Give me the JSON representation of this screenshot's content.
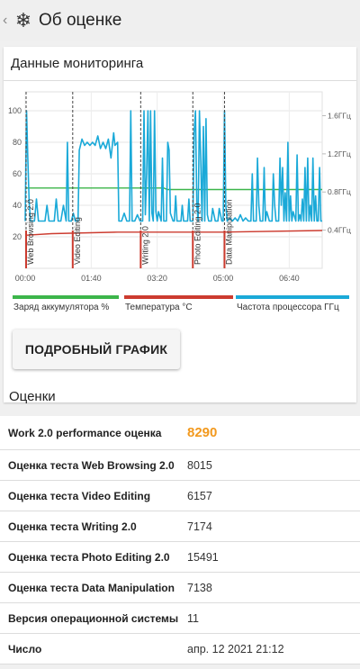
{
  "app_bar": {
    "back_glyph": "‹",
    "title": "Об оценке",
    "icon": "snowflake-icon"
  },
  "monitoring": {
    "title": "Данные мониторинга",
    "button_label": "ПОДРОБНЫЙ ГРАФИК"
  },
  "chart_data": {
    "type": "line",
    "x_ticks": [
      "00:00",
      "01:40",
      "03:20",
      "05:00",
      "06:40"
    ],
    "y_left_ticks": [
      "100",
      "80",
      "60",
      "40",
      "20"
    ],
    "y_left_range": [
      0,
      100
    ],
    "y_right_ticks": [
      "1.6ГГц",
      "1.2ГГц",
      "0.8ГГц",
      "0.4ГГц"
    ],
    "y_right_values_ghz": [
      1.6,
      1.2,
      0.8,
      0.4
    ],
    "grid": true,
    "legend_position": "bottom",
    "test_markers": [
      {
        "label": "Web Browsing 2.0",
        "time_min": 0
      },
      {
        "label": "Video Editing",
        "time_min": 72
      },
      {
        "label": "Writing 2.0",
        "time_min": 175
      },
      {
        "label": "Photo Editing 2.0",
        "time_min": 254
      },
      {
        "label": "Data Manipulation",
        "time_min": 302
      }
    ],
    "series": [
      {
        "name": "Заряд аккумулятора %",
        "color": "#3cb54a",
        "axis": "left",
        "points": [
          [
            0,
            51
          ],
          [
            210,
            51
          ],
          [
            215,
            50
          ],
          [
            450,
            50
          ]
        ]
      },
      {
        "name": "Температура °C",
        "color": "#cc3b2f",
        "axis": "left",
        "points": [
          [
            0,
            21
          ],
          [
            40,
            22
          ],
          [
            140,
            23
          ],
          [
            300,
            23
          ],
          [
            450,
            24
          ]
        ]
      },
      {
        "name": "Частота процессора ГГц",
        "color": "#1aa9d8",
        "axis": "left",
        "points": [
          [
            0,
            30
          ],
          [
            2,
            100
          ],
          [
            4,
            70
          ],
          [
            6,
            42
          ],
          [
            8,
            30
          ],
          [
            14,
            30
          ],
          [
            17,
            44
          ],
          [
            20,
            30
          ],
          [
            30,
            30
          ],
          [
            33,
            40
          ],
          [
            36,
            30
          ],
          [
            44,
            30
          ],
          [
            47,
            44
          ],
          [
            50,
            30
          ],
          [
            54,
            30
          ],
          [
            58,
            40
          ],
          [
            62,
            30
          ],
          [
            64,
            80
          ],
          [
            66,
            30
          ],
          [
            70,
            30
          ],
          [
            73,
            35
          ],
          [
            76,
            30
          ],
          [
            80,
            30
          ],
          [
            82,
            75
          ],
          [
            86,
            82
          ],
          [
            90,
            78
          ],
          [
            94,
            80
          ],
          [
            98,
            78
          ],
          [
            102,
            80
          ],
          [
            106,
            78
          ],
          [
            110,
            84
          ],
          [
            114,
            76
          ],
          [
            118,
            80
          ],
          [
            122,
            76
          ],
          [
            126,
            82
          ],
          [
            130,
            70
          ],
          [
            134,
            86
          ],
          [
            136,
            78
          ],
          [
            140,
            80
          ],
          [
            142,
            30
          ],
          [
            146,
            30
          ],
          [
            150,
            35
          ],
          [
            154,
            30
          ],
          [
            158,
            30
          ],
          [
            160,
            100
          ],
          [
            162,
            30
          ],
          [
            166,
            30
          ],
          [
            170,
            34
          ],
          [
            174,
            30
          ],
          [
            178,
            30
          ],
          [
            180,
            100
          ],
          [
            182,
            34
          ],
          [
            184,
            60
          ],
          [
            186,
            100
          ],
          [
            188,
            30
          ],
          [
            190,
            100
          ],
          [
            192,
            35
          ],
          [
            194,
            30
          ],
          [
            196,
            100
          ],
          [
            198,
            36
          ],
          [
            200,
            30
          ],
          [
            202,
            36
          ],
          [
            206,
            30
          ],
          [
            208,
            70
          ],
          [
            210,
            30
          ],
          [
            214,
            30
          ],
          [
            216,
            80
          ],
          [
            218,
            75
          ],
          [
            220,
            35
          ],
          [
            224,
            30
          ],
          [
            226,
            30
          ],
          [
            228,
            46
          ],
          [
            230,
            30
          ],
          [
            236,
            30
          ],
          [
            238,
            40
          ],
          [
            240,
            30
          ],
          [
            246,
            30
          ],
          [
            248,
            44
          ],
          [
            250,
            30
          ],
          [
            254,
            30
          ],
          [
            256,
            86
          ],
          [
            258,
            100
          ],
          [
            260,
            40
          ],
          [
            262,
            30
          ],
          [
            264,
            100
          ],
          [
            266,
            68
          ],
          [
            268,
            30
          ],
          [
            270,
            90
          ],
          [
            272,
            30
          ],
          [
            274,
            95
          ],
          [
            276,
            34
          ],
          [
            278,
            30
          ],
          [
            282,
            30
          ],
          [
            284,
            38
          ],
          [
            288,
            30
          ],
          [
            292,
            30
          ],
          [
            294,
            38
          ],
          [
            298,
            30
          ],
          [
            300,
            30
          ],
          [
            302,
            100
          ],
          [
            304,
            40
          ],
          [
            306,
            30
          ],
          [
            310,
            32
          ],
          [
            314,
            30
          ],
          [
            318,
            32
          ],
          [
            322,
            30
          ],
          [
            326,
            34
          ],
          [
            330,
            30
          ],
          [
            334,
            32
          ],
          [
            338,
            30
          ],
          [
            342,
            30
          ],
          [
            344,
            60
          ],
          [
            346,
            30
          ],
          [
            350,
            30
          ],
          [
            352,
            70
          ],
          [
            354,
            40
          ],
          [
            356,
            30
          ],
          [
            360,
            30
          ],
          [
            362,
            64
          ],
          [
            364,
            30
          ],
          [
            366,
            36
          ],
          [
            370,
            30
          ],
          [
            374,
            30
          ],
          [
            376,
            60
          ],
          [
            378,
            40
          ],
          [
            380,
            30
          ],
          [
            384,
            30
          ],
          [
            386,
            70
          ],
          [
            388,
            40
          ],
          [
            390,
            64
          ],
          [
            392,
            30
          ],
          [
            394,
            48
          ],
          [
            396,
            30
          ],
          [
            398,
            80
          ],
          [
            400,
            30
          ],
          [
            402,
            46
          ],
          [
            404,
            30
          ],
          [
            406,
            36
          ],
          [
            410,
            30
          ],
          [
            412,
            72
          ],
          [
            414,
            30
          ],
          [
            416,
            34
          ],
          [
            418,
            30
          ],
          [
            420,
            44
          ],
          [
            422,
            30
          ],
          [
            424,
            64
          ],
          [
            426,
            30
          ],
          [
            428,
            70
          ],
          [
            430,
            30
          ],
          [
            432,
            40
          ],
          [
            434,
            30
          ],
          [
            436,
            70
          ],
          [
            438,
            30
          ],
          [
            440,
            46
          ],
          [
            442,
            30
          ],
          [
            444,
            30
          ],
          [
            446,
            64
          ],
          [
            448,
            30
          ],
          [
            450,
            30
          ]
        ]
      }
    ]
  },
  "scores": {
    "title": "Оценки",
    "rows": [
      {
        "label": "Work 2.0 performance оценка",
        "value": "8290"
      },
      {
        "label": "Оценка теста Web Browsing 2.0",
        "value": "8015"
      },
      {
        "label": "Оценка теста Video Editing",
        "value": "6157"
      },
      {
        "label": "Оценка теста Writing 2.0",
        "value": "7174"
      },
      {
        "label": "Оценка теста Photo Editing 2.0",
        "value": "15491"
      },
      {
        "label": "Оценка теста Data Manipulation",
        "value": "7138"
      },
      {
        "label": "Версия операционной системы",
        "value": "11"
      },
      {
        "label": "Число",
        "value": "апр. 12 2021 21:12"
      }
    ]
  }
}
